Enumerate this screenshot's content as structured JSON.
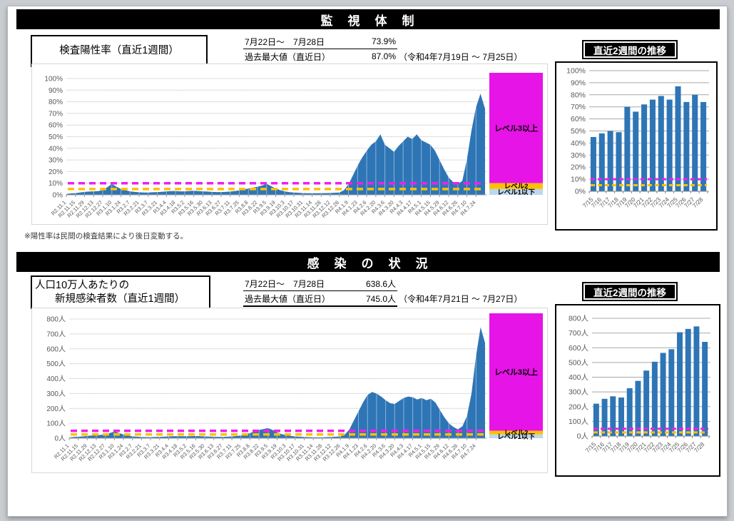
{
  "sections": [
    {
      "banner": "監　視　体　制",
      "label_box": {
        "lines": [
          "検査陽性率（直近1週間）"
        ]
      },
      "stats": {
        "rows": [
          {
            "label": "7月22日～　7月28日",
            "value": "73.9%"
          },
          {
            "label": "過去最大値（直近日）",
            "value": "87.0%"
          }
        ],
        "note": "（令和4年7月19日 ～ 7月25日）"
      },
      "mini_title": "直近2週間の推移",
      "footnote": "※陽性率は民間の検査結果により後日変動する。"
    },
    {
      "banner": "感　染　の　状　況",
      "label_box": {
        "lines": [
          "人口10万人あたりの",
          "新規感染者数（直近1週間）"
        ]
      },
      "stats": {
        "rows": [
          {
            "label": "7月22日～　7月28日",
            "value": "638.6人"
          },
          {
            "label": "過去最大値（直近日）",
            "value": "745.0人"
          }
        ],
        "note": "（令和4年7月21日 ～ 7月27日）"
      },
      "mini_title": "直近2週間の推移"
    }
  ],
  "colors": {
    "area_blue": "#2E75B6",
    "bar_blue": "#2E75B6",
    "threshold_magenta": "#F01EF0",
    "threshold_orange": "#FFC000",
    "level3_magenta": "#E614E6",
    "level2_yellow": "#FFC000",
    "level1_blue": "#BDD7EE",
    "grid_light": "#DCDCDC",
    "grid_dark": "#A8A8A8",
    "axis_text": "#595959"
  },
  "chart_data": [
    {
      "type": "area",
      "name": "positivity-rate-history",
      "ylabel": "%",
      "y_max": 100,
      "y_ticks": [
        "100%",
        "90%",
        "80%",
        "70%",
        "60%",
        "50%",
        "40%",
        "30%",
        "20%",
        "10%",
        "0%"
      ],
      "x_tick_labels": [
        "R2.11.1",
        "R2.11.15",
        "R2.11.29",
        "R2.12.13",
        "R2.12.27",
        "R3.1.10",
        "R3.1.24",
        "R3.2.7",
        "R3.2.21",
        "R3.3.7",
        "R3.3.21",
        "R3.4.4",
        "R3.4.18",
        "R3.5.2",
        "R3.5.16",
        "R3.5.30",
        "R3.6.13",
        "R3.6.27",
        "R3.7.11",
        "R3.7.25",
        "R3.8.8",
        "R3.8.22",
        "R3.9.5",
        "R3.9.19",
        "R3.10.3",
        "R3.10.17",
        "R3.10.31",
        "R3.11.14",
        "R3.11.28",
        "R3.12.12",
        "R3.12.26",
        "R4.1.9",
        "R4.1.23",
        "R4.2.6",
        "R4.2.20",
        "R4.3.6",
        "R4.3.20",
        "R4.4.3",
        "R4.4.17",
        "R4.5.1",
        "R4.5.15",
        "R4.5.29",
        "R4.6.12",
        "R4.6.26",
        "R4.7.10",
        "R4.7.24"
      ],
      "values": [
        0.8,
        1.2,
        1.5,
        2.0,
        2.5,
        2.8,
        3.0,
        3.2,
        4.0,
        6.5,
        9.3,
        7.0,
        5.0,
        4.0,
        3.0,
        2.5,
        2.2,
        2.0,
        2.0,
        2.2,
        2.4,
        2.6,
        3.0,
        3.2,
        3.3,
        3.0,
        3.0,
        3.3,
        3.5,
        3.2,
        3.0,
        2.8,
        2.5,
        2.4,
        2.4,
        2.5,
        2.8,
        3.2,
        3.8,
        4.5,
        5.5,
        6.2,
        7.0,
        8.0,
        9.5,
        7.5,
        5.5,
        4.0,
        3.0,
        2.3,
        2.0,
        1.8,
        1.5,
        1.4,
        1.4,
        1.4,
        1.5,
        1.5,
        1.6,
        1.8,
        2.0,
        4.0,
        9.0,
        17,
        25,
        32,
        38,
        43,
        46,
        52,
        43,
        40,
        37,
        42,
        46,
        50,
        48,
        52,
        47,
        45,
        43,
        38,
        30,
        22,
        15,
        11,
        9,
        12,
        30,
        55,
        75,
        87,
        74
      ],
      "thresholds": [
        {
          "value": 10,
          "color": "#F01EF0"
        },
        {
          "value": 5,
          "color": "#FFC000"
        }
      ],
      "levels": [
        {
          "label": "レベル3以上",
          "from": 10,
          "to": 100,
          "color": "#E614E6"
        },
        {
          "label": "レベル2",
          "from": 5,
          "to": 10,
          "color": "#FFC000"
        },
        {
          "label": "レベル1以下",
          "from": 0,
          "to": 5,
          "color": "#BDD7EE"
        }
      ]
    },
    {
      "type": "bar",
      "name": "positivity-rate-last-2-weeks",
      "ylabel": "%",
      "y_max": 100,
      "y_ticks": [
        "100%",
        "90%",
        "80%",
        "70%",
        "60%",
        "50%",
        "40%",
        "30%",
        "20%",
        "10%",
        "0%"
      ],
      "categories": [
        "7/15",
        "7/16",
        "7/17",
        "7/18",
        "7/19",
        "7/20",
        "7/21",
        "7/22",
        "7/23",
        "7/24",
        "7/25",
        "7/26",
        "7/27",
        "7/28"
      ],
      "values": [
        45,
        48,
        50,
        49,
        70,
        66,
        72,
        76,
        79,
        76,
        87,
        74,
        80,
        74
      ],
      "thresholds": [
        {
          "value": 10,
          "color": "#F01EF0"
        },
        {
          "value": 5,
          "color": "#FFC000"
        }
      ]
    },
    {
      "type": "area",
      "name": "new-cases-per-100k-history",
      "ylabel": "人",
      "y_max": 800,
      "y_ticks": [
        "800人",
        "700人",
        "600人",
        "500人",
        "400人",
        "300人",
        "200人",
        "100人",
        "0人"
      ],
      "x_tick_labels": [
        "R2.11.1",
        "R2.11.15",
        "R2.11.29",
        "R2.12.13",
        "R2.12.27",
        "R3.1.10",
        "R3.1.24",
        "R3.2.7",
        "R3.2.21",
        "R3.3.7",
        "R3.3.21",
        "R3.4.4",
        "R3.4.18",
        "R3.5.2",
        "R3.5.16",
        "R3.5.30",
        "R3.6.13",
        "R3.6.27",
        "R3.7.11",
        "R3.7.25",
        "R3.8.8",
        "R3.8.22",
        "R3.9.5",
        "R3.9.19",
        "R3.10.3",
        "R3.10.17",
        "R3.10.31",
        "R3.11.14",
        "R3.11.28",
        "R3.12.12",
        "R3.12.26",
        "R4.1.9",
        "R4.1.23",
        "R4.2.6",
        "R4.2.20",
        "R4.3.6",
        "R4.3.20",
        "R4.4.3",
        "R4.4.17",
        "R4.5.1",
        "R4.5.15",
        "R4.5.29",
        "R4.6.12",
        "R4.6.26",
        "R4.7.10",
        "R4.7.24"
      ],
      "values": [
        5,
        8,
        10,
        12,
        15,
        18,
        20,
        22,
        25,
        35,
        45,
        35,
        25,
        18,
        12,
        10,
        8,
        7,
        7,
        8,
        9,
        10,
        12,
        13,
        14,
        13,
        13,
        14,
        15,
        13,
        12,
        11,
        10,
        9,
        9,
        10,
        12,
        15,
        18,
        25,
        35,
        45,
        55,
        62,
        68,
        55,
        40,
        28,
        20,
        15,
        12,
        10,
        8,
        7,
        6,
        6,
        6,
        7,
        8,
        10,
        12,
        25,
        60,
        120,
        180,
        240,
        290,
        310,
        300,
        280,
        255,
        235,
        230,
        250,
        270,
        280,
        275,
        260,
        270,
        255,
        265,
        240,
        190,
        140,
        100,
        75,
        60,
        80,
        150,
        300,
        550,
        745,
        640
      ],
      "thresholds": [
        {
          "value": 50,
          "color": "#F01EF0"
        },
        {
          "value": 25,
          "color": "#FFC000"
        }
      ],
      "levels": [
        {
          "label": "レベル3以上",
          "from": 50,
          "to": 800,
          "color": "#E614E6"
        },
        {
          "label": "レベル2",
          "from": 25,
          "to": 50,
          "color": "#FFC000"
        },
        {
          "label": "レベル1以下",
          "from": 0,
          "to": 25,
          "color": "#BDD7EE"
        }
      ]
    },
    {
      "type": "bar",
      "name": "new-cases-per-100k-last-2-weeks",
      "ylabel": "人",
      "y_max": 800,
      "y_ticks": [
        "800人",
        "700人",
        "600人",
        "500人",
        "400人",
        "300人",
        "200人",
        "100人",
        "0人"
      ],
      "categories": [
        "7/15",
        "7/16",
        "7/17",
        "7/18",
        "7/19",
        "7/20",
        "7/21",
        "7/22",
        "7/23",
        "7/24",
        "7/25",
        "7/26",
        "7/27",
        "7/28"
      ],
      "values": [
        220,
        253,
        270,
        262,
        325,
        375,
        445,
        505,
        565,
        590,
        705,
        728,
        745,
        640
      ],
      "thresholds": [
        {
          "value": 50,
          "color": "#F01EF0"
        },
        {
          "value": 25,
          "color": "#FFC000"
        }
      ]
    }
  ]
}
